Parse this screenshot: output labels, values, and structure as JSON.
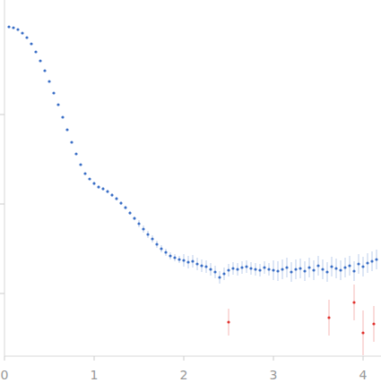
{
  "chart_data": {
    "type": "scatter",
    "tick_labels": "x",
    "grid": false,
    "xlim": [
      0,
      4.2
    ],
    "xticks": [
      0,
      1,
      2,
      3,
      4
    ],
    "ylim": [
      -0.7,
      3.28
    ],
    "yticks": [
      0,
      1,
      2
    ],
    "series": [
      {
        "color": "#3b6fc6",
        "marker": "circle",
        "x": [
          0.05,
          0.1,
          0.15,
          0.2,
          0.25,
          0.3,
          0.35,
          0.4,
          0.45,
          0.5,
          0.55,
          0.6,
          0.65,
          0.7,
          0.75,
          0.8,
          0.85,
          0.9,
          0.95,
          1.0,
          1.05,
          1.1,
          1.15,
          1.2,
          1.25,
          1.3,
          1.35,
          1.4,
          1.45,
          1.5,
          1.55,
          1.6,
          1.65,
          1.7,
          1.75,
          1.8,
          1.85,
          1.9,
          1.95,
          2.0,
          2.05,
          2.1,
          2.15,
          2.2,
          2.25,
          2.3,
          2.35,
          2.4,
          2.45,
          2.5,
          2.55,
          2.6,
          2.65,
          2.7,
          2.75,
          2.8,
          2.85,
          2.9,
          2.95,
          3.0,
          3.05,
          3.1,
          3.15,
          3.2,
          3.25,
          3.3,
          3.35,
          3.4,
          3.45,
          3.5,
          3.55,
          3.6,
          3.65,
          3.7,
          3.75,
          3.8,
          3.85,
          3.9,
          3.95,
          4.0,
          4.05,
          4.1,
          4.15
        ],
        "values": [
          2.98,
          2.97,
          2.95,
          2.91,
          2.86,
          2.79,
          2.7,
          2.6,
          2.49,
          2.37,
          2.24,
          2.11,
          1.97,
          1.83,
          1.69,
          1.56,
          1.44,
          1.34,
          1.28,
          1.23,
          1.19,
          1.17,
          1.14,
          1.1,
          1.06,
          1.01,
          0.96,
          0.9,
          0.84,
          0.78,
          0.72,
          0.66,
          0.61,
          0.55,
          0.5,
          0.46,
          0.42,
          0.4,
          0.38,
          0.37,
          0.35,
          0.36,
          0.33,
          0.31,
          0.3,
          0.27,
          0.24,
          0.18,
          0.22,
          0.26,
          0.28,
          0.27,
          0.29,
          0.3,
          0.28,
          0.27,
          0.26,
          0.29,
          0.27,
          0.26,
          0.25,
          0.27,
          0.29,
          0.24,
          0.27,
          0.28,
          0.25,
          0.29,
          0.26,
          0.31,
          0.27,
          0.24,
          0.3,
          0.28,
          0.26,
          0.29,
          0.31,
          0.25,
          0.33,
          0.3,
          0.34,
          0.36,
          0.38
        ],
        "errors": [
          0.005,
          0.005,
          0.005,
          0.005,
          0.005,
          0.005,
          0.005,
          0.005,
          0.005,
          0.005,
          0.005,
          0.005,
          0.005,
          0.005,
          0.005,
          0.005,
          0.005,
          0.005,
          0.005,
          0.02,
          0.02,
          0.02,
          0.02,
          0.02,
          0.02,
          0.02,
          0.02,
          0.02,
          0.02,
          0.04,
          0.04,
          0.04,
          0.04,
          0.04,
          0.04,
          0.04,
          0.04,
          0.04,
          0.04,
          0.07,
          0.07,
          0.07,
          0.07,
          0.07,
          0.07,
          0.07,
          0.07,
          0.07,
          0.07,
          0.07,
          0.07,
          0.07,
          0.07,
          0.07,
          0.07,
          0.07,
          0.07,
          0.07,
          0.07,
          0.11,
          0.11,
          0.11,
          0.11,
          0.11,
          0.11,
          0.11,
          0.11,
          0.11,
          0.11,
          0.11,
          0.11,
          0.11,
          0.11,
          0.11,
          0.11,
          0.11,
          0.11,
          0.11,
          0.11,
          0.11,
          0.11,
          0.11,
          0.11
        ]
      },
      {
        "color": "#e0302c",
        "marker": "circle",
        "x": [
          2.5,
          3.62,
          3.9,
          4.0,
          4.12
        ],
        "values": [
          -0.32,
          -0.27,
          -0.1,
          -0.44,
          -0.34
        ],
        "errors": [
          0.15,
          0.2,
          0.2,
          0.25,
          0.2
        ]
      }
    ]
  }
}
